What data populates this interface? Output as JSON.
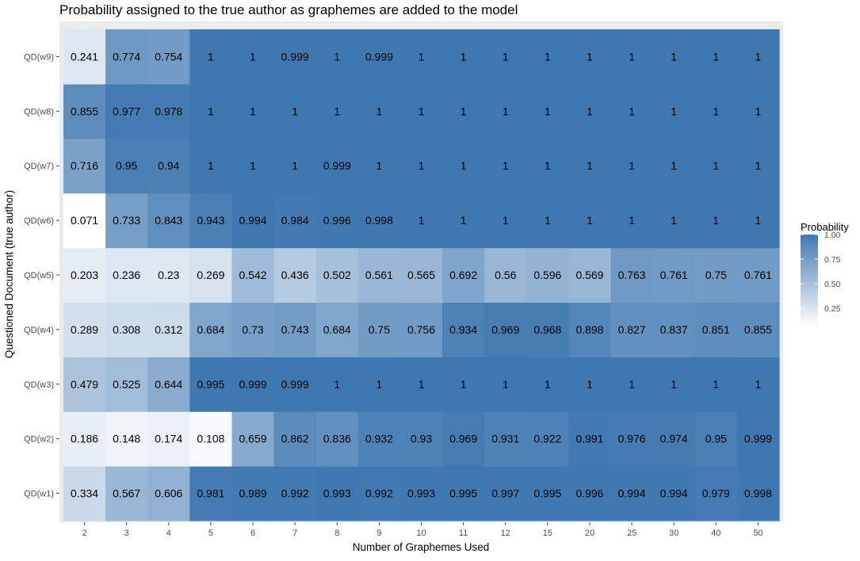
{
  "chart_data": {
    "type": "heatmap",
    "title": "Probability assigned to the true author as graphemes are added to the model",
    "xlabel": "Number of Graphemes Used",
    "ylabel": "Questioned Document (true author)",
    "x_categories": [
      "2",
      "3",
      "4",
      "5",
      "6",
      "7",
      "8",
      "9",
      "10",
      "11",
      "12",
      "15",
      "20",
      "25",
      "30",
      "40",
      "50"
    ],
    "y_categories": [
      "QD(w1)",
      "QD(w2)",
      "QD(w3)",
      "QD(w4)",
      "QD(w5)",
      "QD(w6)",
      "QD(w7)",
      "QD(w8)",
      "QD(w9)"
    ],
    "values": [
      [
        "0.334",
        "0.567",
        "0.606",
        "0.981",
        "0.989",
        "0.992",
        "0.993",
        "0.992",
        "0.993",
        "0.995",
        "0.997",
        "0.995",
        "0.996",
        "0.994",
        "0.994",
        "0.979",
        "0.998"
      ],
      [
        "0.186",
        "0.148",
        "0.174",
        "0.108",
        "0.659",
        "0.862",
        "0.836",
        "0.932",
        "0.93",
        "0.969",
        "0.931",
        "0.922",
        "0.991",
        "0.976",
        "0.974",
        "0.95",
        "0.999"
      ],
      [
        "0.479",
        "0.525",
        "0.644",
        "0.995",
        "0.999",
        "0.999",
        "1",
        "1",
        "1",
        "1",
        "1",
        "1",
        "1",
        "1",
        "1",
        "1",
        "1"
      ],
      [
        "0.289",
        "0.308",
        "0.312",
        "0.684",
        "0.73",
        "0.743",
        "0.684",
        "0.75",
        "0.756",
        "0.934",
        "0.969",
        "0.968",
        "0.898",
        "0.827",
        "0.837",
        "0.851",
        "0.855"
      ],
      [
        "0.203",
        "0.236",
        "0.23",
        "0.269",
        "0.542",
        "0.436",
        "0.502",
        "0.561",
        "0.565",
        "0.692",
        "0.56",
        "0.596",
        "0.569",
        "0.763",
        "0.761",
        "0.75",
        "0.761"
      ],
      [
        "0.071",
        "0.733",
        "0.843",
        "0.943",
        "0.994",
        "0.984",
        "0.996",
        "0.998",
        "1",
        "1",
        "1",
        "1",
        "1",
        "1",
        "1",
        "1",
        "1"
      ],
      [
        "0.716",
        "0.95",
        "0.94",
        "1",
        "1",
        "1",
        "0.999",
        "1",
        "1",
        "1",
        "1",
        "1",
        "1",
        "1",
        "1",
        "1",
        "1"
      ],
      [
        "0.855",
        "0.977",
        "0.978",
        "1",
        "1",
        "1",
        "1",
        "1",
        "1",
        "1",
        "1",
        "1",
        "1",
        "1",
        "1",
        "1",
        "1"
      ],
      [
        "0.241",
        "0.774",
        "0.754",
        "1",
        "1",
        "0.999",
        "1",
        "0.999",
        "1",
        "1",
        "1",
        "1",
        "1",
        "1",
        "1",
        "1",
        "1"
      ]
    ],
    "scale": {
      "low_color": "#ffffff",
      "high_color": "#3f78b0",
      "min": 0.071,
      "max": 1.0
    },
    "legend": {
      "title": "Probability",
      "placement": "right",
      "ticks": [
        "0.25",
        "0.50",
        "0.75",
        "1.00"
      ],
      "tick_values": [
        0.25,
        0.5,
        0.75,
        1.0
      ]
    },
    "panel_background": "#ebebeb",
    "grid": true
  }
}
